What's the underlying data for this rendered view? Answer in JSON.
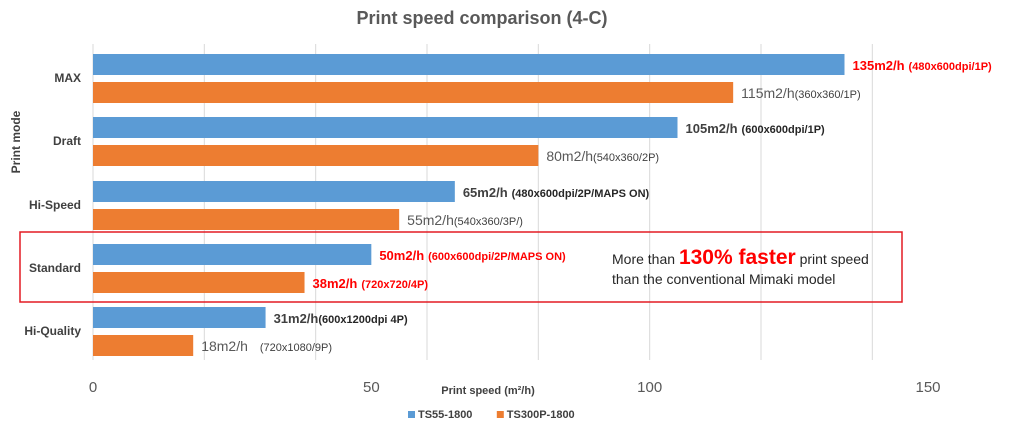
{
  "chart_data": {
    "type": "bar",
    "orientation": "horizontal",
    "title": "Print speed comparison (4-C)",
    "xlabel": "Print speed (m²/h)",
    "ylabel": "Print mode",
    "xlim": [
      0,
      150
    ],
    "xticks": [
      "0",
      "50",
      "100",
      "150"
    ],
    "grid": true,
    "legend_position": "bottom",
    "categories": [
      "MAX",
      "Draft",
      "Hi-Speed",
      "Standard",
      "Hi-Quality"
    ],
    "series": [
      {
        "name": "TS55-1800",
        "color": "#5b9bd5",
        "values": [
          135,
          105,
          65,
          50,
          31
        ],
        "labels": [
          {
            "value": "135m2/h",
            "detail": "(480x600dpi/1P)",
            "style": "red-bold"
          },
          {
            "value": "105m2/h",
            "detail": "(600x600dpi/1P)",
            "style": "dark-bold"
          },
          {
            "value": "65m2/h",
            "detail": "(480x600dpi/2P/MAPS ON)",
            "style": "dark-bold"
          },
          {
            "value": "50m2/h",
            "detail": "(600x600dpi/2P/MAPS ON)",
            "style": "red-bold"
          },
          {
            "value": "31m2/h",
            "detail": "(600x1200dpi 4P)",
            "style": "dark-bold-tight"
          }
        ]
      },
      {
        "name": "TS300P-1800",
        "color": "#ed7d31",
        "values": [
          115,
          80,
          55,
          38,
          18
        ],
        "labels": [
          {
            "value": "115m2/h",
            "detail": "(360x360/1P)",
            "style": "gray"
          },
          {
            "value": "80m2/h",
            "detail": "(540x360/2P)",
            "style": "gray"
          },
          {
            "value": "55m2/h",
            "detail": "(540x360/3P/)",
            "style": "gray"
          },
          {
            "value": "38m2/h",
            "detail": "(720x720/4P)",
            "style": "red-bold"
          },
          {
            "value": "18m2/h",
            "detail": "(720x1080/9P)",
            "style": "gray-wide"
          }
        ]
      }
    ],
    "highlight": {
      "category": "Standard",
      "prefix": "More than",
      "emphasis": "130% faster",
      "suffix": "print speed",
      "line2": "than the conventional Mimaki model",
      "color": "#e31b23"
    }
  }
}
